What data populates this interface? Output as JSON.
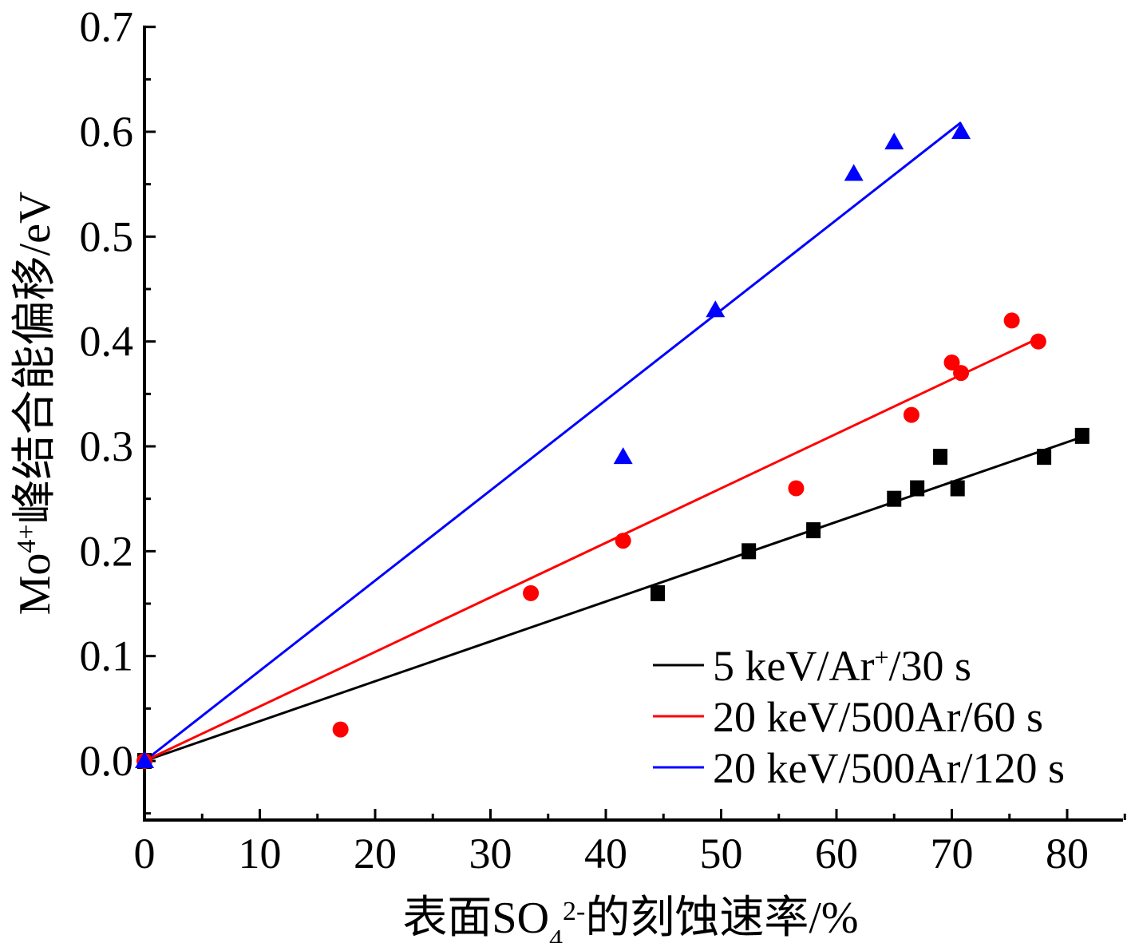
{
  "chart_data": {
    "type": "scatter",
    "xlabel": {
      "prefix": "表面SO",
      "sub": "4",
      "sup": "2-",
      "suffix": "的刻蚀速率/%"
    },
    "ylabel": {
      "prefix": "Mo",
      "sup": "4+",
      "suffix": "峰结合能偏移/eV"
    },
    "xlim": [
      0,
      85
    ],
    "ylim": [
      -0.05,
      0.7
    ],
    "x_ticks": [
      "0",
      "10",
      "20",
      "30",
      "40",
      "50",
      "60",
      "70",
      "80"
    ],
    "y_ticks": [
      "0.0",
      "0.1",
      "0.2",
      "0.3",
      "0.4",
      "0.5",
      "0.6",
      "0.7"
    ],
    "legend_position": "bottom-right",
    "series": [
      {
        "name": "5 keV/Ar⁺/30 s",
        "legend": {
          "pre": "5 keV/Ar",
          "sup": "+",
          "post": "/30 s"
        },
        "color": "#000000",
        "marker": "square",
        "fit_slope": 0.0038,
        "points": [
          [
            0,
            0.0
          ],
          [
            44.5,
            0.16
          ],
          [
            52.4,
            0.2
          ],
          [
            58,
            0.22
          ],
          [
            65,
            0.25
          ],
          [
            67,
            0.26
          ],
          [
            69,
            0.29
          ],
          [
            70.5,
            0.26
          ],
          [
            78,
            0.29
          ],
          [
            81.3,
            0.31
          ]
        ]
      },
      {
        "name": "20 keV/500Ar/60 s",
        "legend": {
          "pre": "20 keV/500Ar/60 s",
          "sup": "",
          "post": ""
        },
        "color": "#ff0000",
        "marker": "circle",
        "fit_slope": 0.0052,
        "points": [
          [
            0,
            0.0
          ],
          [
            17,
            0.03
          ],
          [
            33.5,
            0.16
          ],
          [
            41.5,
            0.21
          ],
          [
            56.5,
            0.26
          ],
          [
            66.5,
            0.33
          ],
          [
            70,
            0.38
          ],
          [
            70.8,
            0.37
          ],
          [
            75.2,
            0.42
          ],
          [
            77.5,
            0.4
          ]
        ]
      },
      {
        "name": "20 keV/500Ar/120 s",
        "legend": {
          "pre": "20 keV/500Ar/120 s",
          "sup": "",
          "post": ""
        },
        "color": "#0000ff",
        "marker": "triangle",
        "fit_slope": 0.0086,
        "points": [
          [
            0,
            0.0
          ],
          [
            41.5,
            0.29
          ],
          [
            49.5,
            0.43
          ],
          [
            61.5,
            0.56
          ],
          [
            65,
            0.59
          ],
          [
            70.8,
            0.6
          ]
        ]
      }
    ]
  }
}
